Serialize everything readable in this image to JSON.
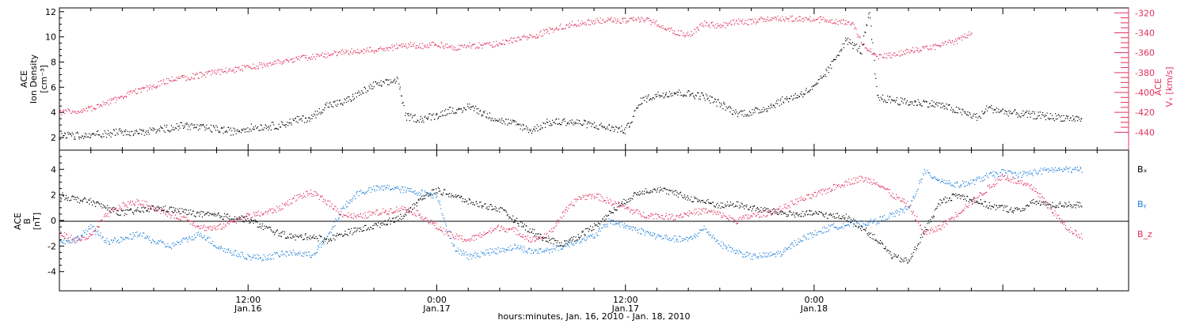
{
  "colors": {
    "black": "#000000",
    "pink": "#e0305f",
    "blue": "#1f7fdc",
    "axis": "#000000"
  },
  "chart_data": [
    {
      "type": "scatter",
      "panel": "top",
      "y_left_label": [
        "ACE",
        "Ion Density",
        "[cm⁻³]"
      ],
      "y_right_label": [
        "ACE",
        "Vₓ [km/s]"
      ],
      "x_range_hours": [
        0,
        68
      ],
      "y_left_ticks": [
        "2",
        "4",
        "6",
        "8",
        "10",
        "12"
      ],
      "ylim_left": [
        1.0,
        12.3
      ],
      "y_right_ticks": [
        "-440",
        "-420",
        "-400",
        "-380",
        "-360",
        "-340",
        "-320"
      ],
      "ylim_right": [
        -458,
        -315
      ],
      "grid": false,
      "series": [
        {
          "key": "density",
          "color": "black",
          "axis": "left",
          "x": [
            0,
            1,
            2,
            3,
            4,
            5,
            6,
            7,
            8,
            9,
            10,
            11,
            12,
            13,
            14,
            15,
            16,
            17,
            18,
            19,
            20,
            21,
            21.5,
            22,
            23,
            24,
            25,
            25.5,
            26,
            27,
            28,
            29,
            30,
            31,
            32,
            33,
            34,
            35,
            36,
            37,
            38,
            39,
            40,
            41,
            42,
            43,
            44,
            45,
            46,
            47,
            48,
            49,
            50,
            51,
            51.5,
            52,
            53,
            54,
            55,
            56,
            57,
            58,
            58.5,
            59,
            60,
            61,
            62,
            63,
            64,
            65
          ],
          "y": [
            2.2,
            2.2,
            2.3,
            2.3,
            2.5,
            2.4,
            2.6,
            2.8,
            3.0,
            2.8,
            2.7,
            2.5,
            2.8,
            2.9,
            3.0,
            3.4,
            3.6,
            4.6,
            4.8,
            5.5,
            6.2,
            6.4,
            6.7,
            3.7,
            3.5,
            3.8,
            4.3,
            4.0,
            4.6,
            3.9,
            3.4,
            3.1,
            2.6,
            3.2,
            3.3,
            3.2,
            3.0,
            2.8,
            2.6,
            5.0,
            5.4,
            5.6,
            5.5,
            5.3,
            4.7,
            4.0,
            4.0,
            4.4,
            5.0,
            5.4,
            6.0,
            7.6,
            9.8,
            8.9,
            12.0,
            5.2,
            5.0,
            4.8,
            4.8,
            4.6,
            4.2,
            3.8,
            3.6,
            4.4,
            4.1,
            3.9,
            3.8,
            3.7,
            3.6,
            3.5
          ]
        },
        {
          "key": "vx",
          "color": "pink",
          "axis": "right",
          "x": [
            0,
            1,
            2,
            3,
            4,
            5,
            6,
            7,
            8,
            9,
            10,
            11,
            12,
            13,
            14,
            15,
            16,
            17,
            18,
            19,
            20,
            21,
            22,
            23,
            24,
            25,
            26,
            27,
            28,
            29,
            30,
            31,
            32,
            33,
            34,
            35,
            36,
            37,
            38,
            39,
            40,
            41,
            42,
            43,
            44,
            45,
            46,
            47,
            48,
            49,
            50,
            50.5,
            51,
            52,
            53,
            54,
            55,
            56,
            57,
            58
          ],
          "y": [
            -420,
            -418,
            -416,
            -410,
            -404,
            -398,
            -393,
            -387,
            -385,
            -382,
            -379,
            -377,
            -374,
            -372,
            -369,
            -366,
            -364,
            -362,
            -359,
            -358,
            -357,
            -355,
            -352,
            -353,
            -351,
            -355,
            -352,
            -353,
            -350,
            -346,
            -344,
            -338,
            -333,
            -330,
            -328,
            -327,
            -327,
            -326,
            -330,
            -338,
            -342,
            -330,
            -334,
            -328,
            -329,
            -325,
            -325,
            -326,
            -326,
            -327,
            -330,
            -332,
            -350,
            -364,
            -362,
            -358,
            -356,
            -352,
            -348,
            -340
          ]
        }
      ]
    },
    {
      "type": "scatter",
      "panel": "bottom",
      "y_label": [
        "ACE",
        "B",
        "[nT]"
      ],
      "x_range_hours": [
        0,
        68
      ],
      "y_ticks": [
        "-4",
        "-2",
        "0",
        "2",
        "4"
      ],
      "ylim": [
        -5.5,
        5.5
      ],
      "zero_line": true,
      "grid": false,
      "legend_position": "right",
      "legend": [
        {
          "text": "Bₓ",
          "color": "black"
        },
        {
          "text": "Bᵧ",
          "color": "blue"
        },
        {
          "text": "B_z",
          "color": "pink"
        }
      ],
      "x_tick_labels": [
        {
          "hour": 12,
          "time": "12:00",
          "date": "Jan.16"
        },
        {
          "hour": 24,
          "time": "0:00",
          "date": "Jan.17"
        },
        {
          "hour": 36,
          "time": "12:00",
          "date": "Jan.17"
        },
        {
          "hour": 48,
          "time": "0:00",
          "date": "Jan.18"
        }
      ],
      "xlabel": "hours:minutes, Jan. 16, 2010 - Jan. 18, 2010",
      "series": [
        {
          "key": "bx",
          "color": "black",
          "x": [
            0,
            1,
            2,
            3,
            4,
            5,
            6,
            7,
            8,
            9,
            10,
            11,
            12,
            13,
            14,
            15,
            16,
            17,
            18,
            19,
            20,
            21,
            22,
            23,
            24,
            25,
            26,
            27,
            28,
            29,
            30,
            31,
            32,
            33,
            34,
            35,
            36,
            37,
            38,
            39,
            40,
            41,
            42,
            43,
            44,
            45,
            46,
            47,
            48,
            49,
            50,
            51,
            52,
            53,
            54,
            55,
            56,
            57,
            58,
            59,
            60,
            61,
            62,
            63,
            64,
            65
          ],
          "y": [
            2.0,
            1.7,
            1.5,
            1.0,
            0.6,
            0.8,
            1.0,
            0.9,
            0.7,
            0.5,
            0.4,
            0.3,
            0.1,
            -0.5,
            -1.0,
            -1.3,
            -1.2,
            -1.5,
            -1.0,
            -0.7,
            -0.4,
            0.0,
            0.5,
            1.8,
            2.4,
            2.0,
            1.5,
            1.2,
            0.9,
            0.0,
            -0.8,
            -1.5,
            -1.8,
            -1.2,
            -0.4,
            0.6,
            1.6,
            2.3,
            2.5,
            2.2,
            1.8,
            1.5,
            1.2,
            1.3,
            1.0,
            0.8,
            0.6,
            0.5,
            0.6,
            0.4,
            0.3,
            -0.5,
            -1.5,
            -2.8,
            -3.2,
            -0.8,
            1.5,
            2.0,
            1.7,
            1.2,
            1.0,
            0.8,
            1.5,
            1.2,
            1.3,
            1.2
          ]
        },
        {
          "key": "by",
          "color": "blue",
          "x": [
            0,
            1,
            2,
            3,
            4,
            5,
            6,
            7,
            8,
            9,
            10,
            11,
            12,
            13,
            14,
            15,
            16,
            17,
            18,
            19,
            20,
            21,
            22,
            23,
            24,
            25,
            26,
            27,
            28,
            29,
            30,
            31,
            32,
            33,
            34,
            35,
            36,
            37,
            38,
            39,
            40,
            41,
            42,
            43,
            44,
            45,
            46,
            47,
            48,
            49,
            50,
            51,
            52,
            53,
            54,
            55,
            56,
            57,
            58,
            59,
            60,
            61,
            62,
            63,
            64,
            65
          ],
          "y": [
            -1.6,
            -1.5,
            -0.5,
            -1.6,
            -1.5,
            -1.0,
            -1.6,
            -2.0,
            -1.5,
            -1.0,
            -2.0,
            -2.5,
            -2.8,
            -2.9,
            -2.6,
            -2.5,
            -2.7,
            -1.4,
            1.0,
            2.2,
            2.5,
            2.6,
            2.4,
            2.2,
            2.0,
            -2.0,
            -2.8,
            -2.5,
            -2.3,
            -2.0,
            -2.4,
            -2.3,
            -2.0,
            -1.5,
            -1.2,
            0.0,
            -0.4,
            -0.8,
            -1.2,
            -1.4,
            -1.5,
            -0.6,
            -1.8,
            -2.4,
            -2.8,
            -2.7,
            -2.5,
            -1.5,
            -1.0,
            -0.5,
            -0.3,
            -0.2,
            0.0,
            0.5,
            1.0,
            3.8,
            3.2,
            2.8,
            3.0,
            3.5,
            3.8,
            3.6,
            3.8,
            4.0,
            4.0,
            4.0
          ]
        },
        {
          "key": "bz",
          "color": "pink",
          "x": [
            0,
            1,
            2,
            3,
            4,
            5,
            6,
            7,
            8,
            9,
            10,
            11,
            12,
            13,
            14,
            15,
            16,
            17,
            18,
            19,
            20,
            21,
            22,
            23,
            24,
            25,
            26,
            27,
            28,
            29,
            30,
            31,
            32,
            33,
            34,
            35,
            36,
            37,
            38,
            39,
            40,
            41,
            42,
            43,
            44,
            45,
            46,
            47,
            48,
            49,
            50,
            51,
            52,
            53,
            54,
            55,
            56,
            57,
            58,
            59,
            60,
            61,
            62,
            63,
            64,
            65
          ],
          "y": [
            -1.0,
            -1.5,
            -1.2,
            0.5,
            1.2,
            1.5,
            1.0,
            0.5,
            0.2,
            -0.5,
            -0.6,
            0.0,
            0.4,
            0.6,
            1.0,
            1.8,
            2.2,
            1.5,
            0.5,
            0.3,
            0.6,
            0.8,
            1.0,
            0.4,
            -0.5,
            -1.2,
            -1.5,
            -1.0,
            -0.5,
            -0.8,
            -1.5,
            -1.2,
            0.5,
            1.8,
            2.0,
            1.5,
            1.0,
            0.5,
            0.4,
            0.3,
            0.6,
            0.8,
            0.5,
            0.0,
            0.4,
            0.6,
            1.0,
            1.6,
            2.0,
            2.5,
            3.0,
            3.3,
            3.0,
            2.0,
            1.2,
            -1.0,
            -0.5,
            0.5,
            1.5,
            2.5,
            3.5,
            3.0,
            2.5,
            1.0,
            -0.5,
            -1.2
          ]
        }
      ]
    }
  ]
}
